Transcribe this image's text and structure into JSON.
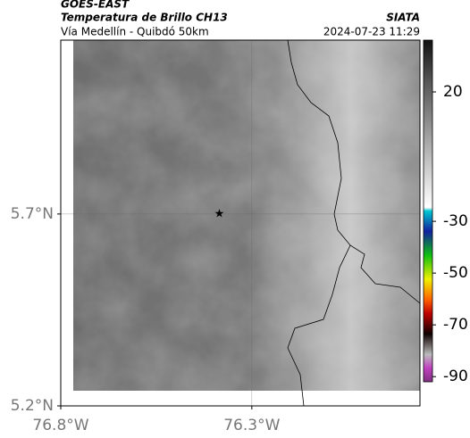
{
  "header": {
    "source": "GOES-EAST",
    "title": "Temperatura de Brillo CH13",
    "subtitle": "Vía Medellín - Quibdó 50km",
    "agency": "SIATA",
    "datetime": "2024-07-23 11:29"
  },
  "map": {
    "xlim": [
      -76.8,
      -75.86
    ],
    "ylim": [
      5.2,
      6.153
    ],
    "xticks": [
      {
        "value": -76.8,
        "label": "76.8°W"
      },
      {
        "value": -76.3,
        "label": "76.3°W"
      }
    ],
    "yticks": [
      {
        "value": 5.2,
        "label": "5.2°N"
      },
      {
        "value": 5.7,
        "label": "5.7°N"
      }
    ],
    "grid": true,
    "marker": {
      "lon": -76.385,
      "lat": 5.7
    }
  },
  "colorbar": {
    "clim": [
      -92,
      40
    ],
    "ticks": [
      20,
      -30,
      -50,
      -70,
      -90
    ]
  }
}
